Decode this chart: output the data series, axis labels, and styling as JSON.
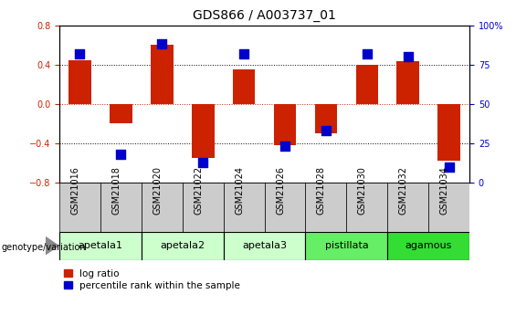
{
  "title": "GDS866 / A003737_01",
  "samples": [
    "GSM21016",
    "GSM21018",
    "GSM21020",
    "GSM21022",
    "GSM21024",
    "GSM21026",
    "GSM21028",
    "GSM21030",
    "GSM21032",
    "GSM21034"
  ],
  "log_ratio": [
    0.44,
    -0.2,
    0.6,
    -0.55,
    0.35,
    -0.42,
    -0.3,
    0.4,
    0.43,
    -0.58
  ],
  "percentile_raw": [
    82,
    18,
    88,
    13,
    82,
    23,
    33,
    82,
    80,
    10
  ],
  "ylim": [
    -0.8,
    0.8
  ],
  "yticks_left": [
    -0.8,
    -0.4,
    0,
    0.4,
    0.8
  ],
  "right_yticks_pct": [
    0,
    25,
    50,
    75,
    100
  ],
  "dotted_lines_black": [
    -0.4,
    0.4
  ],
  "dotted_line_red": 0.0,
  "groups": [
    {
      "name": "apetala1",
      "start": 0,
      "end": 2,
      "color": "#ccffcc"
    },
    {
      "name": "apetala2",
      "start": 2,
      "end": 4,
      "color": "#ccffcc"
    },
    {
      "name": "apetala3",
      "start": 4,
      "end": 6,
      "color": "#ccffcc"
    },
    {
      "name": "pistillata",
      "start": 6,
      "end": 8,
      "color": "#66ee66"
    },
    {
      "name": "agamous",
      "start": 8,
      "end": 10,
      "color": "#33dd33"
    }
  ],
  "bar_color": "#cc2200",
  "dot_color": "#0000cc",
  "axis_left_color": "#cc2200",
  "axis_right_color": "#0000cc",
  "bar_width": 0.55,
  "dot_size": 45,
  "background_color": "#ffffff",
  "genotype_label": "genotype/variation",
  "sample_row_color": "#cccccc",
  "title_fontsize": 10,
  "tick_fontsize": 7,
  "group_fontsize": 8
}
